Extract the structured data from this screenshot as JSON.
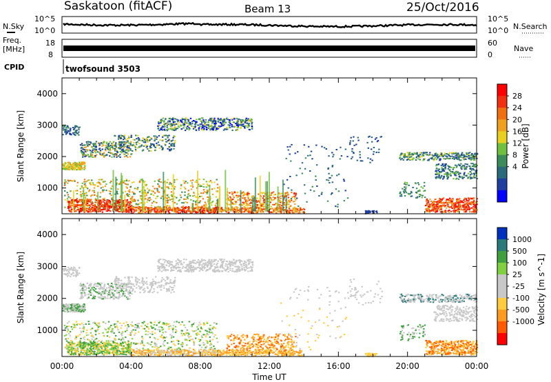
{
  "header": {
    "station": "Saskatoon (fitACF)",
    "beam": "Beam 13",
    "date": "25/Oct/2016"
  },
  "top_panels": {
    "nsky_label": "N.Sky",
    "nsearch_label": "N.Search",
    "noise_ticks": [
      "10^5",
      "10^0"
    ],
    "freq_label_1": "Freq.",
    "freq_label_2": "[MHz]",
    "freq_ticks": [
      "18",
      "8"
    ],
    "nave_label": "Nave",
    "nave_ticks": [
      "60",
      "0"
    ],
    "cpid_label": "CPID",
    "cpid_value": "twofsound 3503"
  },
  "colors": {
    "power_scale": [
      "#0000ff",
      "#1f3fa0",
      "#2a6a7a",
      "#3c8c5a",
      "#70c040",
      "#e8d020",
      "#f0a020",
      "#f07010",
      "#f03010",
      "#ff0000"
    ],
    "velocity_scale": [
      "#ff0000",
      "#ff5a00",
      "#ff9a20",
      "#ffcc40",
      "#c8c8c8",
      "#c8c8c8",
      "#80d040",
      "#40a040",
      "#2a7a7a",
      "#0030c0"
    ]
  },
  "chart_data": [
    {
      "type": "heatmap",
      "name": "power-panel",
      "xlabel": "",
      "ylabel": "Slant Range [km]",
      "x_ticks": [
        "00:00",
        "04:00",
        "08:00",
        "12:00",
        "16:00",
        "20:00",
        "00:00"
      ],
      "xlim_hours": [
        0,
        24
      ],
      "ylim": [
        180,
        4500
      ],
      "y_ticks": [
        1000,
        2000,
        3000,
        4000
      ],
      "colorbar": {
        "label": "Power [dB]",
        "ticks": [
          4,
          8,
          12,
          16,
          20,
          24,
          28
        ],
        "range": [
          0,
          30
        ]
      }
    },
    {
      "type": "heatmap",
      "name": "velocity-panel",
      "xlabel": "Time UT",
      "ylabel": "Slant Range [km]",
      "x_ticks": [
        "00:00",
        "04:00",
        "08:00",
        "12:00",
        "16:00",
        "20:00",
        "00:00"
      ],
      "xlim_hours": [
        0,
        24
      ],
      "ylim": [
        180,
        4500
      ],
      "y_ticks": [
        1000,
        2000,
        3000,
        4000
      ],
      "colorbar": {
        "label": "Velocity [m s^-1]",
        "ticks": [
          "1000",
          "500",
          "100",
          "25",
          "-25",
          "-100",
          "-500",
          "-1000"
        ]
      }
    }
  ]
}
